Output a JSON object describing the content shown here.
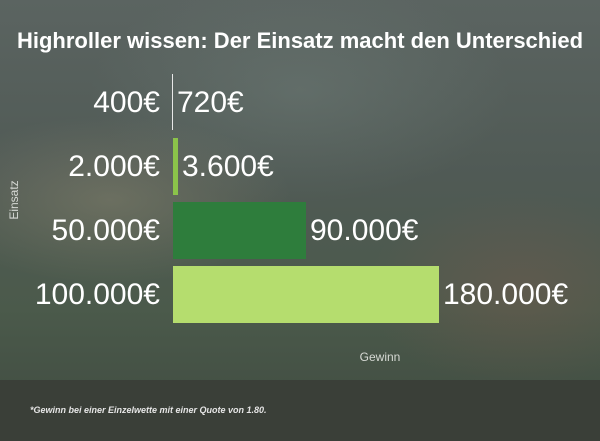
{
  "title": "Highroller wissen: Der Einsatz macht den Unterschied",
  "footnote": "*Gewinn bei einer Einzelwette mit einer Quote von 1.80.",
  "chart_data": {
    "type": "bar",
    "orientation": "horizontal",
    "xlabel": "Gewinn",
    "ylabel": "Einsatz",
    "categories": [
      "400€",
      "2.000€",
      "50.000€",
      "100.000€"
    ],
    "values": [
      720,
      3600,
      90000,
      180000
    ],
    "value_labels": [
      "720€",
      "3.600€",
      "90.000€",
      "180.000€"
    ],
    "bar_colors": [
      "#ffffff",
      "#8bc34a",
      "#2e7d3c",
      "#b5dd6e"
    ],
    "xlim": [
      0,
      180000
    ],
    "grid": false,
    "legend": "none"
  }
}
